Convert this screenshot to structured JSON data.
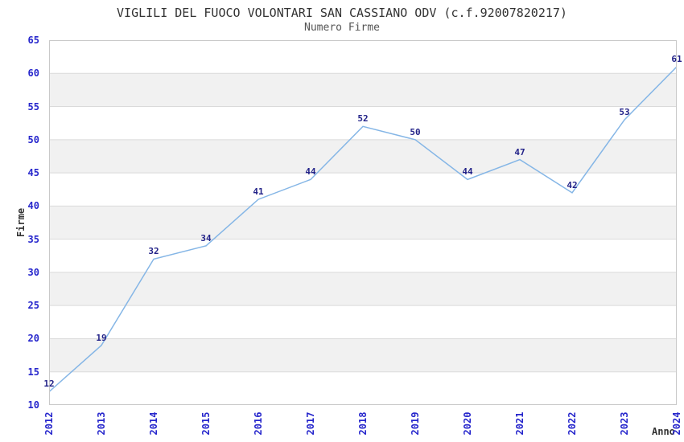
{
  "chart_data": {
    "type": "line",
    "title": "VIGLILI DEL FUOCO VOLONTARI SAN CASSIANO ODV (c.f.92007820217)",
    "subtitle": "Numero Firme",
    "xlabel": "Anno",
    "ylabel": "Firme",
    "categories": [
      "2012",
      "2013",
      "2014",
      "2015",
      "2016",
      "2017",
      "2018",
      "2019",
      "2020",
      "2021",
      "2022",
      "2023",
      "2024"
    ],
    "values": [
      12,
      19,
      32,
      34,
      41,
      44,
      52,
      50,
      44,
      47,
      42,
      53,
      61
    ],
    "ylim": [
      10,
      65
    ],
    "ytick_step": 5,
    "grid": "horizontal",
    "legend": "none",
    "band_fill": "alternating",
    "colors": {
      "line": "#85b6e6",
      "tick_label": "#2626cc",
      "data_label": "#222288",
      "band": "#f1f1f1",
      "band_alt": "#ffffff",
      "gridline": "#dadada",
      "plot_border": "#c9c9c9",
      "title": "#333333",
      "subtitle": "#555555",
      "axis_title": "#333333",
      "background": "#ffffff"
    }
  }
}
